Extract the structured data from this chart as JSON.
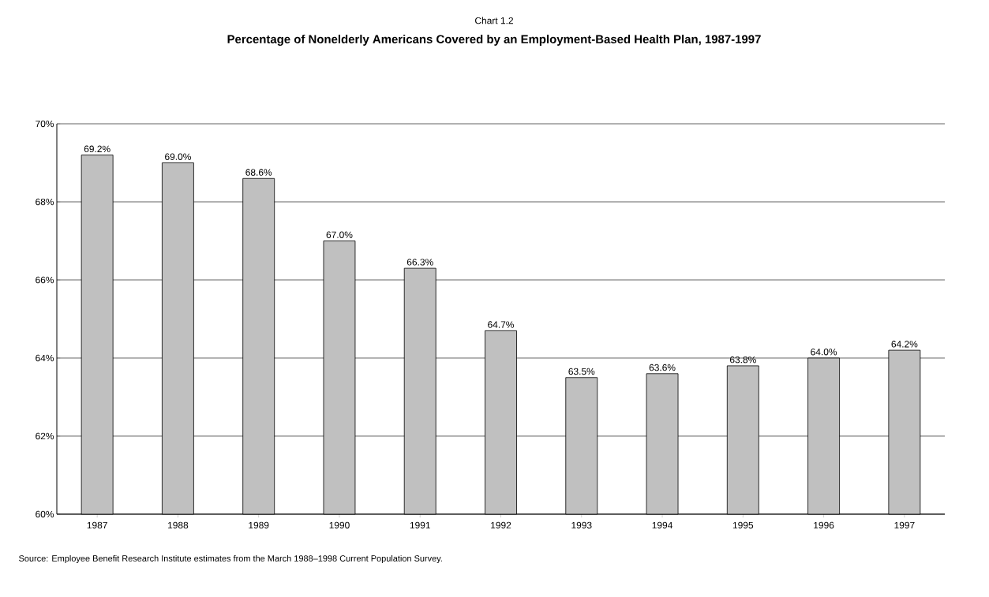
{
  "chart_data": {
    "type": "bar",
    "subtitle": "Chart 1.2",
    "title": "Percentage of Nonelderly Americans Covered by an Employment-Based Health Plan, 1987-1997",
    "categories": [
      "1987",
      "1988",
      "1989",
      "1990",
      "1991",
      "1992",
      "1993",
      "1994",
      "1995",
      "1996",
      "1997"
    ],
    "values": [
      69.2,
      69.0,
      68.6,
      67.0,
      66.3,
      64.7,
      63.5,
      63.6,
      63.8,
      64.0,
      64.2
    ],
    "value_labels": [
      "69.2%",
      "69.0%",
      "68.6%",
      "67.0%",
      "66.3%",
      "64.7%",
      "63.5%",
      "63.6%",
      "63.8%",
      "64.0%",
      "64.2%"
    ],
    "color": "#c0c0c0",
    "ylim": [
      60,
      70
    ],
    "yticks": [
      {
        "value": 60,
        "label": "60%"
      },
      {
        "value": 62,
        "label": "62%"
      },
      {
        "value": 64,
        "label": "64%"
      },
      {
        "value": 66,
        "label": "66%"
      },
      {
        "value": 68,
        "label": "68%"
      },
      {
        "value": 70,
        "label": "70%"
      }
    ],
    "grid": "y",
    "annotations": [
      "Source: Employee Benefit Research Institute estimates from the March 1988–1998 Current Population Survey."
    ]
  }
}
